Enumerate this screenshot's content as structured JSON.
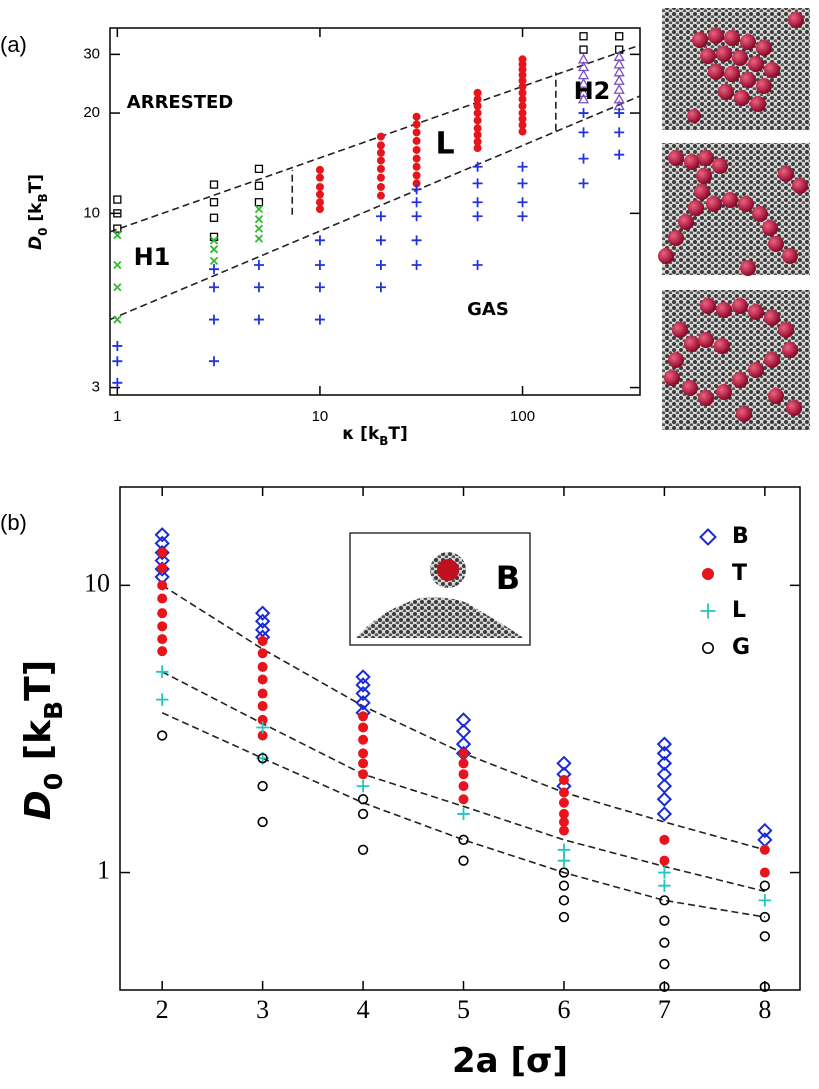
{
  "chart_data": [
    {
      "type": "scatter",
      "panel_label": "(a)",
      "xlabel": [
        {
          "text": "κ"
        },
        {
          "text": " [k"
        },
        {
          "text": "B",
          "sub": true
        },
        {
          "text": "T]"
        }
      ],
      "ylabel": [
        {
          "text": "D"
        },
        {
          "text": "0",
          "sub": true
        },
        {
          "text": " [k"
        },
        {
          "text": "B",
          "sub": true
        },
        {
          "text": "T]"
        }
      ],
      "xlog": true,
      "ylog": true,
      "xlim": [
        0.92,
        380
      ],
      "ylim": [
        2.85,
        36
      ],
      "xticks": [
        1,
        10,
        100
      ],
      "yticks": [
        3,
        10,
        20,
        30
      ],
      "annotations": [
        "ARRESTED",
        "H1",
        "L",
        "H2",
        "GAS"
      ],
      "series": [
        {
          "marker": "square",
          "color": "#000000",
          "x": [
            1,
            1,
            1,
            3,
            3,
            3,
            3,
            5,
            5,
            5,
            200,
            200,
            300,
            300
          ],
          "y": [
            11,
            10,
            9,
            12.2,
            10.8,
            9.7,
            8.5,
            13.6,
            12.1,
            10.8,
            34,
            31,
            34,
            31
          ]
        },
        {
          "marker": "cross",
          "color": "#33bb33",
          "x": [
            1,
            1,
            1,
            1,
            3,
            3,
            3,
            5,
            5,
            5,
            5
          ],
          "y": [
            8.6,
            7.0,
            6.0,
            4.8,
            8.3,
            7.8,
            7.2,
            10.3,
            9.6,
            9.0,
            8.4
          ]
        },
        {
          "marker": "dot",
          "color": "#e8141c",
          "x": [
            10,
            10,
            10,
            10,
            10,
            10,
            20,
            20,
            20,
            20,
            20,
            20,
            20,
            20,
            30,
            30,
            30,
            30,
            30,
            30,
            30,
            30,
            30,
            60,
            60,
            60,
            60,
            60,
            60,
            60,
            60,
            60,
            100,
            100,
            100,
            100,
            100,
            100,
            100,
            100,
            100,
            100,
            100,
            100,
            100
          ],
          "y": [
            13.5,
            12.8,
            12,
            11.4,
            10.8,
            10.3,
            17,
            16,
            15.2,
            14.4,
            13.6,
            12.8,
            12,
            11.3,
            19.5,
            18.5,
            17.5,
            16.5,
            15.5,
            14.6,
            13.8,
            13,
            12.3,
            23,
            22,
            21,
            20,
            19,
            18,
            17.2,
            16.4,
            15.7,
            29,
            28,
            27,
            26,
            25,
            24,
            23,
            22,
            21,
            20,
            19.2,
            18.4,
            17.6
          ]
        },
        {
          "marker": "triangle",
          "color": "#7a4fc0",
          "x": [
            200,
            200,
            200,
            200,
            200,
            200,
            300,
            300,
            300,
            300,
            300,
            300,
            300
          ],
          "y": [
            29,
            27.5,
            26,
            24.5,
            23,
            22,
            29.5,
            28,
            26.5,
            25,
            23.5,
            22,
            21
          ]
        },
        {
          "marker": "plus",
          "color": "#2233dd",
          "x": [
            1,
            1,
            1,
            3,
            3,
            3,
            3,
            5,
            5,
            5,
            10,
            10,
            10,
            10,
            20,
            20,
            20,
            20,
            30,
            30,
            30,
            30,
            30,
            60,
            60,
            60,
            60,
            60,
            100,
            100,
            100,
            100,
            200,
            200,
            200,
            200,
            300,
            300,
            300
          ],
          "y": [
            4.0,
            3.6,
            3.1,
            6.8,
            6.0,
            4.8,
            3.6,
            7.0,
            6.0,
            4.8,
            8.3,
            7.0,
            6.0,
            4.8,
            9.8,
            8.3,
            7.0,
            6.0,
            11.8,
            10.8,
            9.8,
            8.3,
            7.0,
            13.8,
            12.3,
            10.8,
            9.8,
            7.0,
            13.8,
            12.3,
            10.8,
            9.8,
            20,
            17.5,
            14.6,
            12.3,
            20,
            17.5,
            15
          ]
        }
      ],
      "boundaries": [
        {
          "x": [
            0.92,
            380
          ],
          "y": [
            8.8,
            32
          ]
        },
        {
          "x": [
            0.92,
            380
          ],
          "y": [
            4.8,
            22.5
          ]
        },
        {
          "x": [
            7.3,
            7.3
          ],
          "y": [
            9.9,
            13.5
          ]
        },
        {
          "x": [
            146,
            146
          ],
          "y": [
            17.7,
            26.5
          ]
        }
      ]
    },
    {
      "type": "scatter",
      "panel_label": "(b)",
      "xlabel": [
        {
          "text": "2a [σ]"
        }
      ],
      "ylabel": [
        {
          "text": "D"
        },
        {
          "text": "0",
          "sub": true
        },
        {
          "text": " [k"
        },
        {
          "text": "B",
          "sub": true
        },
        {
          "text": "T]"
        }
      ],
      "xlog": false,
      "ylog": true,
      "xlim": [
        1.58,
        8.35
      ],
      "ylim": [
        0.39,
        22
      ],
      "xticks": [
        2,
        3,
        4,
        5,
        6,
        7,
        8
      ],
      "yticks": [
        1,
        10
      ],
      "annotations": [
        "B"
      ],
      "series": [
        {
          "name": "B",
          "marker": "diamond",
          "color": "#1a2bd6",
          "x": [
            2,
            2,
            2,
            2,
            2,
            2,
            3,
            3,
            3,
            3,
            4,
            4,
            4,
            4,
            4,
            5,
            5,
            5,
            5,
            6,
            6,
            6,
            7,
            7,
            7,
            7,
            7,
            7,
            7,
            8,
            8
          ],
          "y": [
            15,
            14,
            13,
            12.2,
            11.4,
            10.7,
            8,
            7.5,
            7.0,
            6.6,
            4.8,
            4.5,
            4.2,
            3.9,
            3.6,
            3.4,
            3.1,
            2.8,
            2.6,
            2.4,
            2.2,
            2.0,
            2.8,
            2.6,
            2.4,
            2.2,
            2.0,
            1.8,
            1.6,
            1.4,
            1.3
          ]
        },
        {
          "name": "T",
          "marker": "dot",
          "color": "#e8141c",
          "x": [
            2,
            2,
            2,
            2,
            2,
            2,
            2,
            2,
            3,
            3,
            3,
            3,
            3,
            3,
            3,
            3,
            4,
            4,
            4,
            4,
            4,
            4,
            5,
            5,
            5,
            5,
            5,
            6,
            6,
            6,
            6,
            6,
            6,
            7,
            7,
            8,
            8
          ],
          "y": [
            13,
            11.5,
            10,
            9,
            8,
            7.2,
            6.5,
            5.9,
            6.4,
            5.8,
            5.2,
            4.7,
            4.2,
            3.8,
            3.4,
            3.0,
            3.5,
            3.2,
            2.9,
            2.6,
            2.4,
            2.2,
            2.6,
            2.4,
            2.2,
            2.0,
            1.8,
            2.1,
            1.9,
            1.75,
            1.6,
            1.5,
            1.4,
            1.3,
            1.1,
            1.2,
            1.0
          ]
        },
        {
          "name": "L",
          "marker": "plus",
          "color": "#22c4c4",
          "x": [
            2,
            2,
            3,
            3,
            4,
            5,
            6,
            6,
            7,
            7,
            8
          ],
          "y": [
            5,
            4,
            3.2,
            2.5,
            2.0,
            1.6,
            1.2,
            1.1,
            1.0,
            0.9,
            0.8
          ]
        },
        {
          "name": "G",
          "marker": "circle",
          "color": "#000000",
          "x": [
            2,
            3,
            3,
            3,
            4,
            4,
            4,
            5,
            5,
            6,
            6,
            6,
            6,
            7,
            7,
            7,
            7,
            7,
            8,
            8,
            8,
            8
          ],
          "y": [
            3.0,
            2.5,
            2.0,
            1.5,
            1.8,
            1.6,
            1.2,
            1.3,
            1.1,
            1.0,
            0.9,
            0.8,
            0.7,
            0.8,
            0.68,
            0.57,
            0.48,
            0.4,
            0.9,
            0.7,
            0.6,
            0.4
          ]
        }
      ],
      "boundaries": [
        {
          "x": [
            2,
            3,
            4,
            5,
            6,
            7,
            8
          ],
          "y": [
            10,
            6,
            3.8,
            2.6,
            1.9,
            1.5,
            1.2
          ]
        },
        {
          "x": [
            2,
            3,
            4,
            5,
            6,
            7,
            8
          ],
          "y": [
            5,
            3.3,
            2.2,
            1.7,
            1.3,
            1.05,
            0.86
          ]
        },
        {
          "x": [
            2,
            3,
            4,
            5,
            6,
            7,
            8
          ],
          "y": [
            3.6,
            2.5,
            1.75,
            1.3,
            1.0,
            0.8,
            0.7
          ]
        }
      ]
    }
  ]
}
